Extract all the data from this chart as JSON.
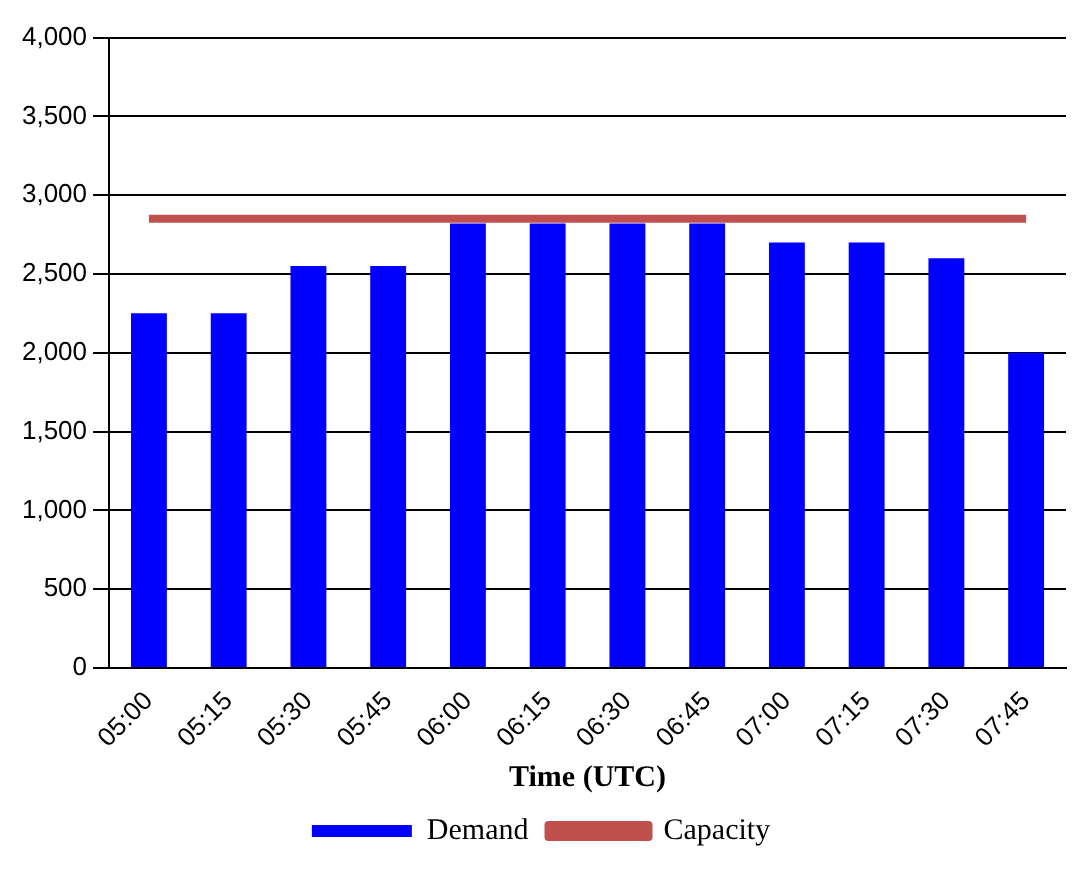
{
  "chart_data": {
    "type": "bar",
    "xlabel": "Time (UTC)",
    "categories": [
      "05:00",
      "05:15",
      "05:30",
      "05:45",
      "06:00",
      "06:15",
      "06:30",
      "06:45",
      "07:00",
      "07:15",
      "07:30",
      "07:45"
    ],
    "series": [
      {
        "name": "Demand",
        "color": "#0000ff",
        "values": [
          2250,
          2250,
          2550,
          2550,
          2820,
          2820,
          2820,
          2820,
          2700,
          2700,
          2600,
          2000
        ]
      },
      {
        "name": "Capacity",
        "type": "line",
        "color": "#c0504d",
        "values": [
          2850,
          2850,
          2850,
          2850,
          2850,
          2850,
          2850,
          2850,
          2850,
          2850,
          2850,
          2850
        ]
      }
    ],
    "ylim": [
      0,
      4000
    ],
    "yticks": [
      {
        "value": 0,
        "label": "0"
      },
      {
        "value": 500,
        "label": "500"
      },
      {
        "value": 1000,
        "label": "1,000"
      },
      {
        "value": 1500,
        "label": "1,500"
      },
      {
        "value": 2000,
        "label": "2,000"
      },
      {
        "value": 2500,
        "label": "2,500"
      },
      {
        "value": 3000,
        "label": "3,000"
      },
      {
        "value": 3500,
        "label": "3,500"
      },
      {
        "value": 4000,
        "label": "4,000"
      }
    ],
    "grid": "y",
    "legend": "bottom",
    "marker": "none"
  }
}
